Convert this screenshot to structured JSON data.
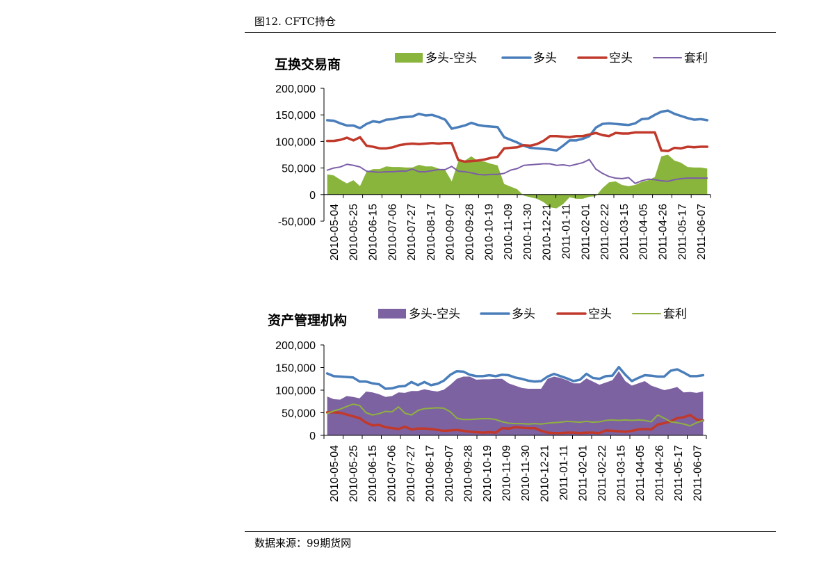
{
  "header": {
    "title": "图12. CFTC持仓"
  },
  "footer": {
    "source": "数据来源：99期货网"
  },
  "dates": [
    "2010-05-04",
    "2010-05-25",
    "2010-06-15",
    "2010-07-06",
    "2010-07-27",
    "2010-08-17",
    "2010-09-07",
    "2010-09-28",
    "2010-10-19",
    "2010-11-09",
    "2010-11-30",
    "2010-12-21",
    "2011-01-11",
    "2011-02-01",
    "2011-02-22",
    "2011-03-15",
    "2011-04-05",
    "2011-04-26",
    "2011-05-17",
    "2011-06-07"
  ],
  "chart_data": [
    {
      "type": "line",
      "title": "互换交易商",
      "ylim": [
        -50000,
        200000
      ],
      "yticks": [
        -50000,
        0,
        50000,
        100000,
        150000,
        200000
      ],
      "ytick_labels": [
        "-50,000",
        "0",
        "50,000",
        "100,000",
        "150,000",
        "200,000"
      ],
      "legend_position": "top",
      "series": [
        {
          "name": "多头-空头",
          "style": "area",
          "color": "#8ab53c",
          "values": [
            38000,
            36000,
            28000,
            21000,
            27000,
            16000,
            43000,
            48000,
            48000,
            53000,
            52000,
            52000,
            51000,
            51000,
            56000,
            53000,
            53000,
            49000,
            46000,
            25000,
            62000,
            64000,
            72000,
            63000,
            62000,
            58000,
            55000,
            20000,
            15000,
            10000,
            -2000,
            -5000,
            -8000,
            -14000,
            -24000,
            -26000,
            -18000,
            -5000,
            -8000,
            -8000,
            -4000,
            -3000,
            12000,
            23000,
            25000,
            18000,
            16000,
            18000,
            24000,
            27000,
            33000,
            72000,
            75000,
            64000,
            60000,
            52000,
            51000,
            51000,
            49000
          ]
        },
        {
          "name": "多头",
          "style": "line",
          "color": "#4a7ebb",
          "values": [
            140000,
            139000,
            134000,
            130000,
            130000,
            125000,
            133000,
            138000,
            136000,
            141000,
            142000,
            145000,
            146000,
            147000,
            152000,
            149000,
            150000,
            146000,
            141000,
            124000,
            127000,
            130000,
            135000,
            131000,
            129000,
            128000,
            127000,
            108000,
            103000,
            98000,
            92000,
            88000,
            87000,
            86000,
            85000,
            83000,
            92000,
            102000,
            102000,
            105000,
            110000,
            126000,
            133000,
            134000,
            133000,
            132000,
            131000,
            134000,
            142000,
            143000,
            150000,
            156000,
            158000,
            152000,
            148000,
            144000,
            141000,
            142000,
            140000
          ]
        },
        {
          "name": "空头",
          "style": "line",
          "color": "#c0392b",
          "values": [
            101000,
            101000,
            103000,
            107000,
            102000,
            108000,
            92000,
            90000,
            87000,
            87000,
            89000,
            93000,
            95000,
            96000,
            95000,
            96000,
            97000,
            96000,
            97000,
            97000,
            65000,
            62000,
            63000,
            64000,
            66000,
            69000,
            71000,
            87000,
            88000,
            89000,
            93000,
            92000,
            95000,
            101000,
            110000,
            110000,
            109000,
            108000,
            110000,
            110000,
            113000,
            116000,
            112000,
            110000,
            116000,
            115000,
            115000,
            117000,
            117000,
            117000,
            117000,
            83000,
            82000,
            88000,
            87000,
            90000,
            89000,
            90000,
            90000
          ]
        },
        {
          "name": "套利",
          "style": "line",
          "color": "#7b5ea7",
          "values": [
            46000,
            50000,
            52000,
            57000,
            55000,
            52000,
            44000,
            43000,
            42000,
            43000,
            43000,
            44000,
            44000,
            48000,
            43000,
            43000,
            45000,
            47000,
            47000,
            53000,
            44000,
            43000,
            41000,
            38000,
            37000,
            38000,
            38000,
            40000,
            46000,
            49000,
            55000,
            56000,
            57000,
            58000,
            58000,
            55000,
            56000,
            54000,
            57000,
            60000,
            66000,
            48000,
            40000,
            34000,
            31000,
            30000,
            32000,
            21000,
            26000,
            29000,
            28000,
            26000,
            25000,
            28000,
            30000,
            31000,
            31000,
            31000,
            31000
          ]
        }
      ]
    },
    {
      "type": "line",
      "title": "资产管理机构",
      "ylim": [
        0,
        200000
      ],
      "yticks": [
        0,
        50000,
        100000,
        150000,
        200000
      ],
      "ytick_labels": [
        "0",
        "50,000",
        "100,000",
        "150,000",
        "200,000"
      ],
      "legend_position": "top",
      "series": [
        {
          "name": "多头-空头",
          "style": "area",
          "color": "#7d62a1",
          "values": [
            86000,
            80000,
            79000,
            87000,
            85000,
            82000,
            97000,
            95000,
            91000,
            85000,
            87000,
            95000,
            94000,
            98000,
            98000,
            102000,
            99000,
            97000,
            101000,
            112000,
            125000,
            130000,
            130000,
            123000,
            124000,
            124000,
            125000,
            125000,
            115000,
            110000,
            105000,
            103000,
            103000,
            103000,
            125000,
            130000,
            127000,
            122000,
            115000,
            115000,
            126000,
            119000,
            112000,
            117000,
            122000,
            142000,
            120000,
            110000,
            115000,
            120000,
            110000,
            105000,
            100000,
            103000,
            107000,
            95000,
            96000,
            94000,
            97000
          ]
        },
        {
          "name": "多头",
          "style": "line",
          "color": "#4a7ebb",
          "values": [
            137000,
            131000,
            130000,
            129000,
            128000,
            119000,
            119000,
            115000,
            113000,
            103000,
            104000,
            108000,
            109000,
            118000,
            111000,
            118000,
            111000,
            114000,
            121000,
            134000,
            142000,
            141000,
            134000,
            131000,
            131000,
            133000,
            131000,
            134000,
            133000,
            128000,
            125000,
            121000,
            119000,
            120000,
            130000,
            136000,
            131000,
            126000,
            120000,
            123000,
            136000,
            127000,
            125000,
            131000,
            132000,
            151000,
            134000,
            120000,
            127000,
            133000,
            132000,
            130000,
            130000,
            143000,
            146000,
            139000,
            131000,
            131000,
            133000
          ]
        },
        {
          "name": "空头",
          "style": "line",
          "color": "#c0392b",
          "values": [
            51000,
            51000,
            50000,
            46000,
            42000,
            38000,
            28000,
            22000,
            23000,
            18000,
            16000,
            14000,
            19000,
            13000,
            15000,
            15000,
            14000,
            12000,
            10000,
            11000,
            12000,
            10000,
            8000,
            7000,
            6000,
            7000,
            6000,
            16000,
            15000,
            18000,
            17000,
            16000,
            16000,
            10000,
            6000,
            5000,
            5000,
            6000,
            6000,
            5000,
            6000,
            6000,
            5000,
            11000,
            10000,
            9000,
            8000,
            10000,
            13000,
            14000,
            13000,
            24000,
            27000,
            31000,
            38000,
            40000,
            45000,
            35000,
            33000
          ]
        },
        {
          "name": "套利",
          "style": "line",
          "color": "#8fb040",
          "values": [
            48000,
            54000,
            58000,
            64000,
            69000,
            66000,
            50000,
            45000,
            48000,
            53000,
            52000,
            63000,
            49000,
            45000,
            55000,
            59000,
            60000,
            61000,
            60000,
            52000,
            38000,
            35000,
            35000,
            36000,
            37000,
            37000,
            35000,
            30000,
            27000,
            26000,
            26000,
            25000,
            26000,
            25000,
            27000,
            28000,
            29000,
            31000,
            30000,
            29000,
            31000,
            29000,
            30000,
            33000,
            34000,
            33000,
            34000,
            33000,
            34000,
            33000,
            30000,
            45000,
            38000,
            30000,
            28000,
            25000,
            21000,
            28000,
            33000
          ]
        }
      ]
    }
  ]
}
